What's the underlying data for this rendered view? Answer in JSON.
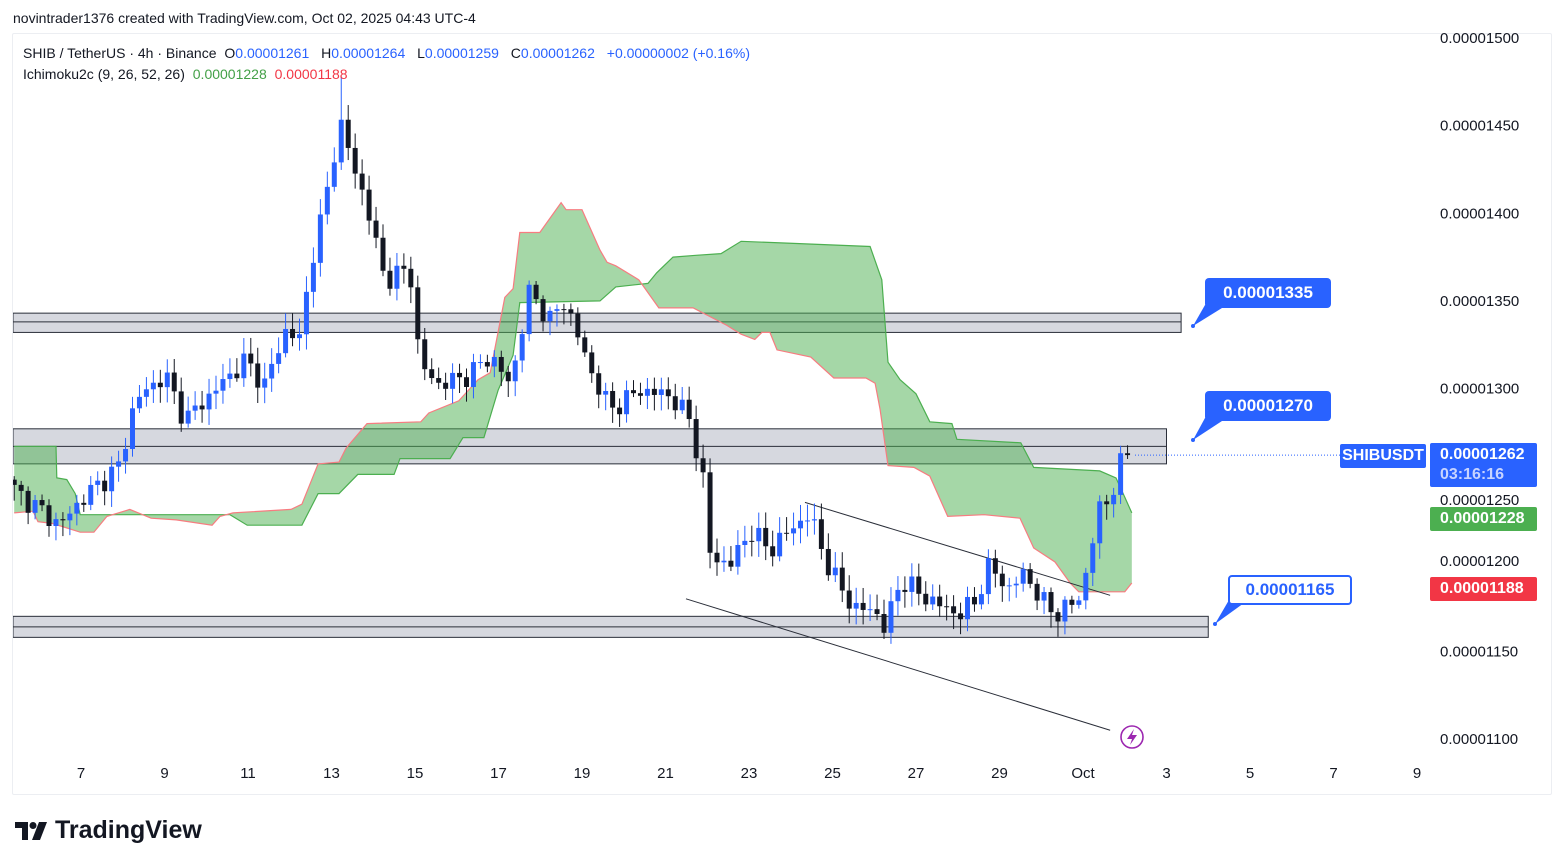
{
  "credit": "novintrader1376 created with TradingView.com, Oct 02, 2025 04:43 UTC-4",
  "legend": {
    "symbol": "SHIB / TetherUS · 4h · Binance",
    "o_label": "O",
    "o": "0.00001261",
    "h_label": "H",
    "h": "0.00001264",
    "l_label": "L",
    "l": "0.00001259",
    "c_label": "C",
    "c": "0.00001262",
    "change": "+0.00000002 (+0.16%)",
    "indicator": "Ichimoku2c (9, 26, 52, 26)",
    "span_a": "0.00001228",
    "span_b": "0.00001188"
  },
  "price_axis": {
    "ticks": [
      "0.00001500",
      "0.00001450",
      "0.00001400",
      "0.00001350",
      "0.00001300",
      "0.00001250",
      "0.00001200",
      "0.00001150",
      "0.00001100"
    ],
    "current_symbol": "SHIBUSDT",
    "current_price": "0.00001262",
    "countdown": "03:16:16",
    "span_a_price": "0.00001228",
    "span_b_price": "0.00001188"
  },
  "callouts": [
    "0.00001335",
    "0.00001270",
    "0.00001165"
  ],
  "logo_text": "TradingView",
  "colors": {
    "up": "#2962ff",
    "down": "#131722",
    "cloud": "#a5d6a7",
    "span_a": "#4caf50",
    "span_b": "#f77c80",
    "accent": "#2962ff"
  },
  "chart_data": {
    "type": "candlestick",
    "title": "SHIB / TetherUS · 4h · Binance",
    "price_unit": "1e-8 USDT",
    "ylim": [
      1100,
      1500
    ],
    "yticks": [
      1500,
      1450,
      1400,
      1350,
      1300,
      1250,
      1200,
      1150,
      1100
    ],
    "x_unit": "day of September 2025 (31 = Oct 1)",
    "xticks": [
      {
        "day": 7,
        "label": "7"
      },
      {
        "day": 9,
        "label": "9"
      },
      {
        "day": 11,
        "label": "11"
      },
      {
        "day": 13,
        "label": "13"
      },
      {
        "day": 15,
        "label": "15"
      },
      {
        "day": 17,
        "label": "17"
      },
      {
        "day": 19,
        "label": "19"
      },
      {
        "day": 21,
        "label": "21"
      },
      {
        "day": 23,
        "label": "23"
      },
      {
        "day": 25,
        "label": "25"
      },
      {
        "day": 27,
        "label": "27"
      },
      {
        "day": 29,
        "label": "29"
      },
      {
        "day": 31,
        "label": "Oct"
      },
      {
        "day": 33,
        "label": "3"
      },
      {
        "day": 35,
        "label": "5"
      },
      {
        "day": 37,
        "label": "7"
      },
      {
        "day": 39,
        "label": "9"
      }
    ],
    "bar_interval_days": 0.16667,
    "price_path": [
      [
        5.4,
        1242
      ],
      [
        6.5,
        1222
      ],
      [
        6.98,
        1236
      ],
      [
        7.93,
        1256
      ],
      [
        8.29,
        1293
      ],
      [
        9.01,
        1308
      ],
      [
        9.49,
        1282
      ],
      [
        10.33,
        1302
      ],
      [
        10.93,
        1316
      ],
      [
        11.41,
        1302
      ],
      [
        11.89,
        1333
      ],
      [
        12.25,
        1328
      ],
      [
        12.49,
        1370
      ],
      [
        12.84,
        1405
      ],
      [
        13.2,
        1453
      ],
      [
        13.4,
        1436
      ],
      [
        13.8,
        1408
      ],
      [
        14.28,
        1362
      ],
      [
        14.88,
        1368
      ],
      [
        15.12,
        1313
      ],
      [
        15.6,
        1302
      ],
      [
        16.32,
        1308
      ],
      [
        16.8,
        1319
      ],
      [
        17.28,
        1302
      ],
      [
        17.75,
        1356
      ],
      [
        18.23,
        1339
      ],
      [
        18.59,
        1350
      ],
      [
        19.19,
        1311
      ],
      [
        19.67,
        1288
      ],
      [
        20.39,
        1299
      ],
      [
        21.11,
        1296
      ],
      [
        21.59,
        1282
      ],
      [
        21.95,
        1242
      ],
      [
        22.07,
        1205
      ],
      [
        22.54,
        1199
      ],
      [
        23.02,
        1219
      ],
      [
        23.5,
        1208
      ],
      [
        24.1,
        1222
      ],
      [
        24.46,
        1228
      ],
      [
        24.94,
        1196
      ],
      [
        25.54,
        1174
      ],
      [
        26.02,
        1174
      ],
      [
        26.26,
        1162
      ],
      [
        26.62,
        1191
      ],
      [
        27.34,
        1179
      ],
      [
        28.05,
        1171
      ],
      [
        28.41,
        1179
      ],
      [
        28.77,
        1199
      ],
      [
        29.25,
        1185
      ],
      [
        29.61,
        1196
      ],
      [
        29.97,
        1179
      ],
      [
        30.45,
        1171
      ],
      [
        30.93,
        1182
      ],
      [
        31.17,
        1202
      ],
      [
        31.34,
        1231
      ],
      [
        31.69,
        1239
      ],
      [
        31.89,
        1256
      ],
      [
        32.13,
        1262
      ]
    ],
    "peak_high": [
      13.2,
      1478
    ],
    "ichimoku_span_a": [
      [
        5.4,
        1267
      ],
      [
        6.4,
        1267
      ],
      [
        6.42,
        1249
      ],
      [
        6.66,
        1248
      ],
      [
        6.86,
        1240
      ],
      [
        6.98,
        1228
      ],
      [
        10.57,
        1228
      ],
      [
        10.98,
        1222
      ],
      [
        12.29,
        1222
      ],
      [
        12.68,
        1240
      ],
      [
        13.18,
        1240
      ],
      [
        13.63,
        1251
      ],
      [
        14.5,
        1251
      ],
      [
        14.64,
        1260
      ],
      [
        15.84,
        1260
      ],
      [
        16.15,
        1272
      ],
      [
        16.65,
        1272
      ],
      [
        16.99,
        1299
      ],
      [
        17.35,
        1319
      ],
      [
        17.51,
        1349
      ],
      [
        19.43,
        1350
      ],
      [
        19.81,
        1358
      ],
      [
        20.58,
        1360
      ],
      [
        20.79,
        1366
      ],
      [
        21.18,
        1375
      ],
      [
        21.73,
        1376
      ],
      [
        22.33,
        1377
      ],
      [
        22.81,
        1384
      ],
      [
        23.84,
        1383
      ],
      [
        25.9,
        1381
      ],
      [
        26.18,
        1362
      ],
      [
        26.33,
        1315
      ],
      [
        26.62,
        1305
      ],
      [
        27.0,
        1297
      ],
      [
        27.33,
        1281
      ],
      [
        27.86,
        1280
      ],
      [
        27.98,
        1271
      ],
      [
        29.51,
        1269
      ],
      [
        29.82,
        1255
      ],
      [
        31.4,
        1253
      ],
      [
        31.79,
        1249
      ],
      [
        32.0,
        1238
      ],
      [
        32.17,
        1229
      ]
    ],
    "ichimoku_span_b": [
      [
        5.4,
        1229
      ],
      [
        5.85,
        1230
      ],
      [
        5.97,
        1224
      ],
      [
        6.31,
        1223
      ],
      [
        6.98,
        1218
      ],
      [
        7.31,
        1218
      ],
      [
        7.62,
        1227
      ],
      [
        8.17,
        1231
      ],
      [
        8.68,
        1226
      ],
      [
        9.28,
        1225
      ],
      [
        10.14,
        1222
      ],
      [
        10.33,
        1227
      ],
      [
        10.64,
        1229
      ],
      [
        12.03,
        1231
      ],
      [
        12.29,
        1234
      ],
      [
        12.68,
        1257
      ],
      [
        13.18,
        1258
      ],
      [
        13.35,
        1266
      ],
      [
        13.85,
        1280
      ],
      [
        15.14,
        1281
      ],
      [
        15.33,
        1286
      ],
      [
        16.05,
        1293
      ],
      [
        16.51,
        1305
      ],
      [
        16.8,
        1309
      ],
      [
        17.15,
        1352
      ],
      [
        17.35,
        1357
      ],
      [
        17.51,
        1389
      ],
      [
        17.99,
        1389
      ],
      [
        18.5,
        1406
      ],
      [
        18.62,
        1402
      ],
      [
        19.0,
        1402
      ],
      [
        19.43,
        1379
      ],
      [
        19.6,
        1372
      ],
      [
        19.81,
        1370
      ],
      [
        20.36,
        1362
      ],
      [
        20.84,
        1346
      ],
      [
        21.66,
        1346
      ],
      [
        22.47,
        1336
      ],
      [
        22.81,
        1331
      ],
      [
        23.14,
        1328
      ],
      [
        23.31,
        1332
      ],
      [
        23.5,
        1332
      ],
      [
        23.67,
        1322
      ],
      [
        24.48,
        1318
      ],
      [
        25.03,
        1306
      ],
      [
        25.8,
        1306
      ],
      [
        26.02,
        1303
      ],
      [
        26.14,
        1288
      ],
      [
        26.33,
        1256
      ],
      [
        26.95,
        1255
      ],
      [
        27.33,
        1250
      ],
      [
        27.76,
        1227
      ],
      [
        28.63,
        1228
      ],
      [
        29.49,
        1226
      ],
      [
        29.82,
        1209
      ],
      [
        30.33,
        1201
      ],
      [
        30.69,
        1189
      ],
      [
        30.9,
        1184
      ],
      [
        32.0,
        1184
      ],
      [
        32.17,
        1189
      ]
    ],
    "zones": [
      {
        "top": 1343,
        "mid": 1338,
        "bottom": 1332,
        "end_day": 33.35,
        "label": "0.00001335"
      },
      {
        "top": 1277,
        "mid": 1267,
        "bottom": 1257,
        "end_day": 33.0,
        "label": "0.00001270"
      },
      {
        "top": 1170,
        "mid": 1164,
        "bottom": 1158,
        "end_day": 34.0,
        "label": "0.00001165"
      }
    ],
    "trendlines": [
      {
        "from": [
          24.34,
          1235
        ],
        "to": [
          31.65,
          1182
        ]
      },
      {
        "from": [
          21.49,
          1180
        ],
        "to": [
          31.65,
          1105
        ]
      }
    ],
    "current_price": 1262
  }
}
